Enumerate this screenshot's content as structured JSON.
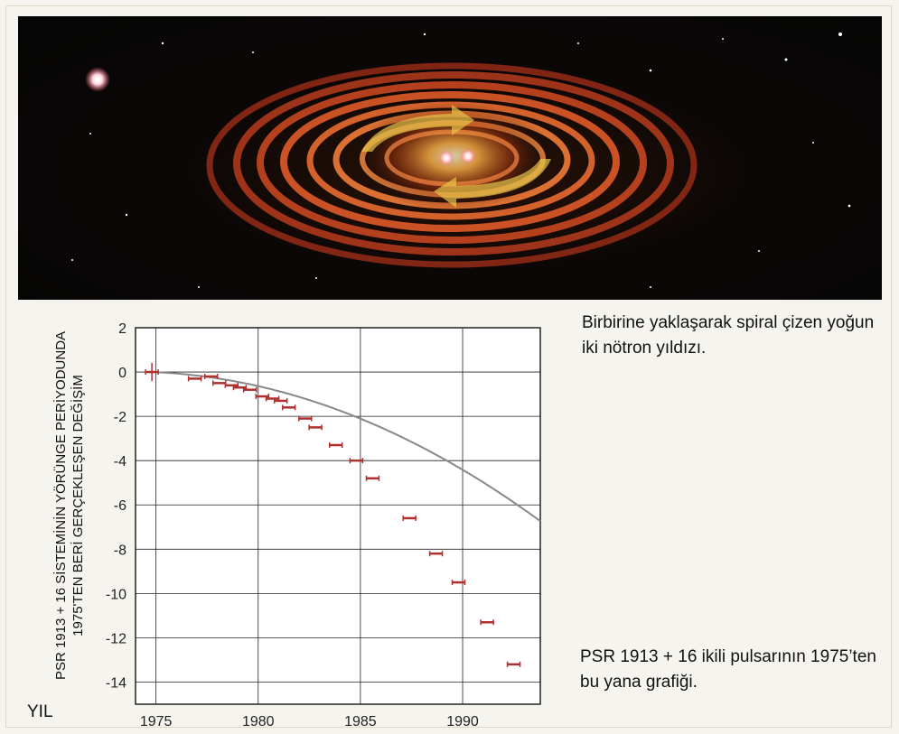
{
  "caption_top": "Birbirine yaklaşarak spiral çizen yoğun iki nötron yıldızı.",
  "caption_bottom": "PSR 1913 + 16 ikili pulsarının 1975’ten bu yana grafiği.",
  "colors": {
    "curve": "#888888",
    "marker": "#b03030",
    "grid": "#222222",
    "plot_bg": "#ffffff"
  },
  "chart_data": {
    "type": "scatter",
    "title": "",
    "ylabel_line1": "PSR 1913 + 16 SİSTEMİNİN YÖRÜNGE PERİYODUNDA",
    "ylabel_line2": "1975'TEN BERİ GERÇEKLEŞEN DEĞİŞİM",
    "xlabel": "YIL",
    "xlim": [
      1974,
      1993.8
    ],
    "ylim": [
      -15,
      2
    ],
    "xticks": [
      1975,
      1980,
      1985,
      1990
    ],
    "yticks": [
      2,
      0,
      -2,
      -4,
      -6,
      -8,
      -10,
      -12,
      -14
    ],
    "grid": true,
    "points": [
      {
        "x": 1974.8,
        "y": 0.0
      },
      {
        "x": 1976.9,
        "y": -0.3
      },
      {
        "x": 1977.7,
        "y": -0.2
      },
      {
        "x": 1978.1,
        "y": -0.5
      },
      {
        "x": 1978.7,
        "y": -0.6
      },
      {
        "x": 1979.1,
        "y": -0.7
      },
      {
        "x": 1979.6,
        "y": -0.8
      },
      {
        "x": 1980.2,
        "y": -1.1
      },
      {
        "x": 1980.7,
        "y": -1.2
      },
      {
        "x": 1981.1,
        "y": -1.3
      },
      {
        "x": 1981.5,
        "y": -1.6
      },
      {
        "x": 1982.3,
        "y": -2.1
      },
      {
        "x": 1982.8,
        "y": -2.5
      },
      {
        "x": 1983.8,
        "y": -3.3
      },
      {
        "x": 1984.8,
        "y": -4.0
      },
      {
        "x": 1985.6,
        "y": -4.8
      },
      {
        "x": 1987.4,
        "y": -6.6
      },
      {
        "x": 1988.7,
        "y": -8.2
      },
      {
        "x": 1989.8,
        "y": -9.5
      },
      {
        "x": 1991.2,
        "y": -11.3
      },
      {
        "x": 1992.5,
        "y": -13.2
      }
    ],
    "curve": {
      "x0": 1974.8,
      "a": -0.0351,
      "b": -0.0168
    }
  }
}
